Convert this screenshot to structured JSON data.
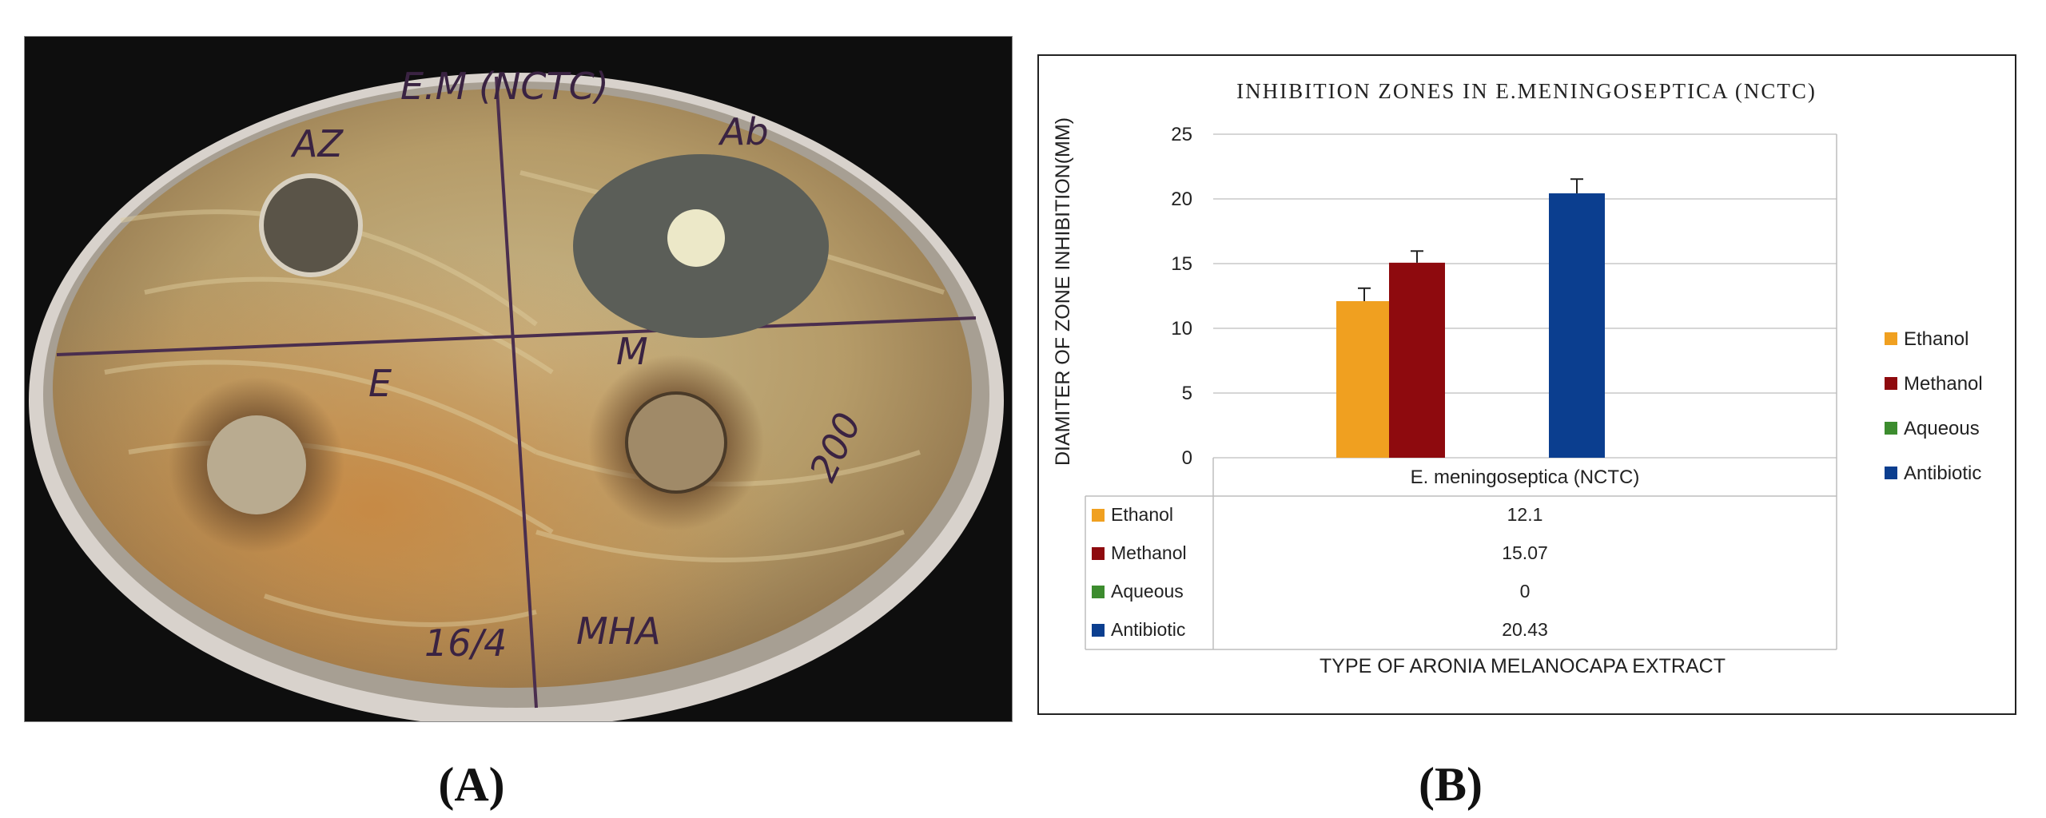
{
  "panel_a": {
    "caption": "(A)",
    "plate_labels": {
      "header": "E.M (NCTC)",
      "top_left": "AZ",
      "top_right": "Ab",
      "bottom_left": "E",
      "bottom_right": "M",
      "concentration": "200",
      "bottom_date": "16/4",
      "medium": "MHA"
    }
  },
  "panel_b": {
    "caption": "(B)"
  },
  "chart_data": {
    "type": "bar",
    "title": "INHIBITION ZONES IN E.MENINGOSEPTICA (NCTC)",
    "ylabel": "DIAMITER OF ZONE INHIBITION(MM)",
    "xlabel": "TYPE OF ARONIA MELANOCAPA EXTRACT",
    "categories": [
      "E. meningoseptica (NCTC)"
    ],
    "ylim": [
      0,
      25
    ],
    "yticks": [
      0,
      5,
      10,
      15,
      20,
      25
    ],
    "grid": true,
    "legend_position": "right",
    "series": [
      {
        "name": "Ethanol",
        "values": [
          12.1
        ],
        "table_value": "12.1",
        "color": "#F0A020",
        "error": 1.0
      },
      {
        "name": "Methanol",
        "values": [
          15.07
        ],
        "table_value": "15.07",
        "color": "#8E0A0E",
        "error": 0.9
      },
      {
        "name": "Aqueous",
        "values": [
          0
        ],
        "table_value": "0",
        "color": "#3C8C2E",
        "error": 0
      },
      {
        "name": "Antibiotic",
        "values": [
          20.43
        ],
        "table_value": "20.43",
        "color": "#0B3E8F",
        "error": 1.1
      }
    ]
  }
}
